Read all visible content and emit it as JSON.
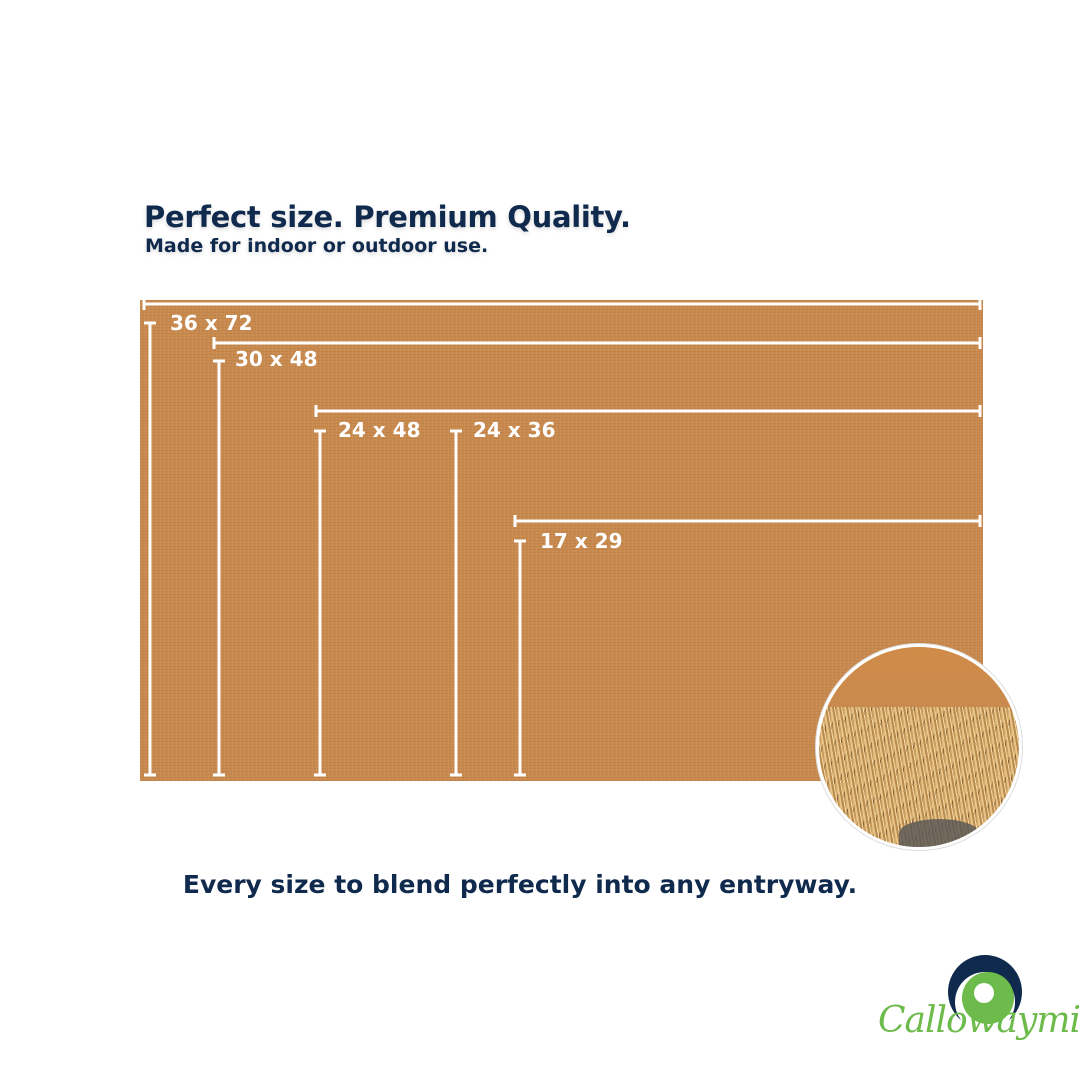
{
  "header": {
    "title": "Perfect size. Premium Quality.",
    "subtitle": "Made for indoor or outdoor use."
  },
  "sizes": [
    {
      "label": "36 x 72"
    },
    {
      "label": "30 x 48"
    },
    {
      "label": "24 x 48"
    },
    {
      "label": "24 x 36"
    },
    {
      "label": "17 x 29"
    }
  ],
  "tagline": "Every size to blend perfectly into any entryway.",
  "brand": {
    "name": "Callowaymills",
    "colors": {
      "navy": "#0f2a4d",
      "green": "#6dbb4a"
    }
  },
  "colors": {
    "mat": "#c88a4f",
    "text": "#0f2a4d"
  }
}
